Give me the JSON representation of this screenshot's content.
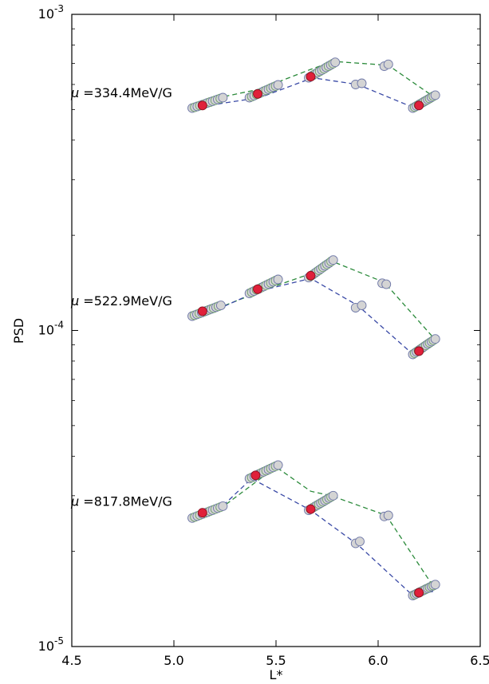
{
  "chart_data": {
    "type": "scatter",
    "title": "",
    "xlabel": "L*",
    "ylabel": "PSD",
    "xlim": [
      4.5,
      6.5
    ],
    "ylim": [
      1e-05,
      0.001
    ],
    "yscale": "log",
    "grid": false,
    "xticks": [
      "4.5",
      "5.0",
      "5.5",
      "6.0",
      "6.5"
    ],
    "yticks": [
      {
        "base": "10",
        "exp": "-5",
        "value": 1e-05
      },
      {
        "base": "10",
        "exp": "-4",
        "value": 0.0001
      },
      {
        "base": "10",
        "exp": "-3",
        "value": 0.001
      }
    ],
    "colors": {
      "green_line": "#2a8a3a",
      "blue_line": "#3a4aa6",
      "marker_fill": "#d4d4d4",
      "marker_green_edge": "#6e9e6e",
      "marker_blue_edge": "#6f78a8",
      "highlight": "#e0203a"
    },
    "groups": [
      {
        "annotation_mu": "μ",
        "annotation_eq": "=",
        "annotation_value": "334.4MeV/G",
        "green_line": [
          [
            5.1,
            0.00051
          ],
          [
            5.25,
            0.00055
          ],
          [
            5.42,
            0.00058
          ],
          [
            5.67,
            0.00067
          ],
          [
            5.78,
            0.00071
          ],
          [
            6.05,
            0.00069
          ],
          [
            6.27,
            0.00055
          ]
        ],
        "blue_line": [
          [
            5.1,
            0.000505
          ],
          [
            5.25,
            0.000525
          ],
          [
            5.42,
            0.000545
          ],
          [
            5.68,
            0.00063
          ],
          [
            5.9,
            0.0006
          ],
          [
            6.18,
            0.000505
          ],
          [
            6.28,
            0.00054
          ]
        ],
        "segments": [
          {
            "x0": 5.09,
            "y0": 0.000505,
            "x1": 5.24,
            "y1": 0.000545
          },
          {
            "x0": 5.37,
            "y0": 0.000545,
            "x1": 5.51,
            "y1": 0.000598
          },
          {
            "x0": 5.66,
            "y0": 0.00063,
            "x1": 5.79,
            "y1": 0.000705
          },
          {
            "x0": 6.17,
            "y0": 0.000505,
            "x1": 6.28,
            "y1": 0.000555
          }
        ],
        "isolated": [
          [
            5.89,
            0.0006
          ],
          [
            5.92,
            0.000605
          ],
          [
            6.03,
            0.000685
          ],
          [
            6.05,
            0.000695
          ]
        ],
        "highlights": [
          [
            5.14,
            0.000515
          ],
          [
            5.41,
            0.00056
          ],
          [
            5.67,
            0.000635
          ],
          [
            6.2,
            0.000515
          ]
        ]
      },
      {
        "annotation_mu": "μ",
        "annotation_eq": "=",
        "annotation_value": "522.9MeV/G",
        "green_line": [
          [
            5.1,
            0.000112
          ],
          [
            5.25,
            0.00012
          ],
          [
            5.45,
            0.000135
          ],
          [
            5.68,
            0.000152
          ],
          [
            5.78,
            0.000165
          ],
          [
            6.03,
            0.000142
          ],
          [
            6.27,
            9.5e-05
          ]
        ],
        "blue_line": [
          [
            5.1,
            0.00011
          ],
          [
            5.23,
            0.000118
          ],
          [
            5.41,
            0.000133
          ],
          [
            5.67,
            0.000146
          ],
          [
            5.9,
            0.00012
          ],
          [
            6.18,
            8.3e-05
          ],
          [
            6.28,
            9.3e-05
          ]
        ],
        "segments": [
          {
            "x0": 5.09,
            "y0": 0.000111,
            "x1": 5.23,
            "y1": 0.00012
          },
          {
            "x0": 5.37,
            "y0": 0.000131,
            "x1": 5.51,
            "y1": 0.000145
          },
          {
            "x0": 5.66,
            "y0": 0.000147,
            "x1": 5.78,
            "y1": 0.000167
          },
          {
            "x0": 6.17,
            "y0": 8.4e-05,
            "x1": 6.28,
            "y1": 9.4e-05
          }
        ],
        "isolated": [
          [
            5.89,
            0.000118
          ],
          [
            5.92,
            0.00012
          ],
          [
            6.02,
            0.000141
          ],
          [
            6.04,
            0.00014
          ]
        ],
        "highlights": [
          [
            5.14,
            0.000115
          ],
          [
            5.41,
            0.000135
          ],
          [
            5.67,
            0.000149
          ],
          [
            6.2,
            8.6e-05
          ]
        ]
      },
      {
        "annotation_mu": "μ",
        "annotation_eq": "=",
        "annotation_value": "817.8MeV/G",
        "green_line": [
          [
            5.11,
            2.6e-05
          ],
          [
            5.25,
            2.8e-05
          ],
          [
            5.5,
            3.7e-05
          ],
          [
            5.67,
            3.1e-05
          ],
          [
            5.77,
            3e-05
          ],
          [
            6.04,
            2.6e-05
          ],
          [
            6.27,
            1.55e-05
          ]
        ],
        "blue_line": [
          [
            5.1,
            2.55e-05
          ],
          [
            5.23,
            2.75e-05
          ],
          [
            5.38,
            3.4e-05
          ],
          [
            5.67,
            2.7e-05
          ],
          [
            5.9,
            2.1e-05
          ],
          [
            6.17,
            1.45e-05
          ],
          [
            6.28,
            1.5e-05
          ]
        ],
        "segments": [
          {
            "x0": 5.09,
            "y0": 2.55e-05,
            "x1": 5.24,
            "y1": 2.78e-05
          },
          {
            "x0": 5.37,
            "y0": 3.4e-05,
            "x1": 5.51,
            "y1": 3.75e-05
          },
          {
            "x0": 5.66,
            "y0": 2.7e-05,
            "x1": 5.78,
            "y1": 3e-05
          },
          {
            "x0": 6.17,
            "y0": 1.45e-05,
            "x1": 6.28,
            "y1": 1.57e-05
          }
        ],
        "isolated": [
          [
            5.89,
            2.12e-05
          ],
          [
            5.91,
            2.15e-05
          ],
          [
            6.03,
            2.58e-05
          ],
          [
            6.05,
            2.6e-05
          ]
        ],
        "highlights": [
          [
            5.14,
            2.65e-05
          ],
          [
            5.4,
            3.48e-05
          ],
          [
            5.67,
            2.72e-05
          ],
          [
            6.2,
            1.48e-05
          ]
        ]
      }
    ]
  }
}
